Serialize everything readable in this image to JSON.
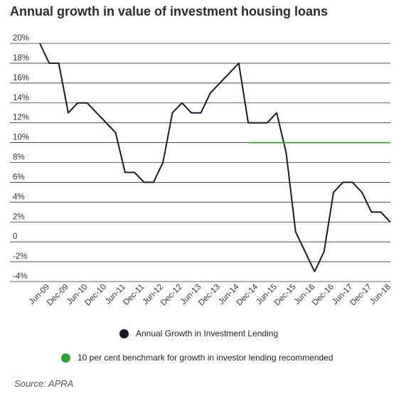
{
  "chart_data": {
    "type": "line",
    "title": "Annual growth in value of investment housing loans",
    "source": "Source: APRA",
    "ylim": [
      -4,
      20
    ],
    "y_ticks": [
      20,
      18,
      16,
      14,
      12,
      10,
      8,
      6,
      4,
      2,
      0,
      -2,
      -4
    ],
    "y_tick_labels": [
      "20%",
      "18%",
      "16%",
      "14%",
      "12%",
      "10%",
      "8%",
      "6%",
      "4%",
      "2%",
      "0",
      "-2%",
      "-4%"
    ],
    "x_tick_labels": [
      "Jun-09",
      "Dec-09",
      "Jun-10",
      "Dec-10",
      "Jun-11",
      "Dec-11",
      "Jun-12",
      "Dec-12",
      "Jun-13",
      "Dec-13",
      "Jun-14",
      "Dec-14",
      "Jun-15",
      "Dec-15",
      "Jun-16",
      "Dec-16",
      "Jun-17",
      "Dec-17",
      "Jun-18"
    ],
    "grid": true,
    "legend_position": "bottom",
    "series": [
      {
        "name": "Annual Growth in Investment Lending",
        "color": "#151b2b",
        "points": [
          [
            "Jun-09",
            20
          ],
          [
            "Sep-09",
            18
          ],
          [
            "Dec-09",
            18
          ],
          [
            "Mar-10",
            13
          ],
          [
            "Jun-10",
            14
          ],
          [
            "Sep-10",
            14
          ],
          [
            "Dec-10",
            13
          ],
          [
            "Mar-11",
            12
          ],
          [
            "Jun-11",
            11
          ],
          [
            "Sep-11",
            7
          ],
          [
            "Dec-11",
            7
          ],
          [
            "Mar-12",
            6
          ],
          [
            "Jun-12",
            6
          ],
          [
            "Sep-12",
            8
          ],
          [
            "Dec-12",
            13
          ],
          [
            "Mar-13",
            14
          ],
          [
            "Jun-13",
            13
          ],
          [
            "Sep-13",
            13
          ],
          [
            "Dec-13",
            15
          ],
          [
            "Mar-14",
            16
          ],
          [
            "Jun-14",
            17
          ],
          [
            "Sep-14",
            18
          ],
          [
            "Dec-14",
            12
          ],
          [
            "Mar-15",
            12
          ],
          [
            "Jun-15",
            12
          ],
          [
            "Sep-15",
            13
          ],
          [
            "Dec-15",
            9
          ],
          [
            "Mar-16",
            1
          ],
          [
            "Jun-16",
            -1
          ],
          [
            "Sep-16",
            -3
          ],
          [
            "Dec-16",
            -1
          ],
          [
            "Mar-17",
            5
          ],
          [
            "Jun-17",
            6
          ],
          [
            "Sep-17",
            6
          ],
          [
            "Dec-17",
            5
          ],
          [
            "Mar-18",
            3
          ],
          [
            "Jun-18",
            3
          ],
          [
            "Sep-18",
            2
          ]
        ]
      },
      {
        "name": "10 per cent benchmark for growth in investor lending recommended",
        "color": "#2fa12f",
        "points": [
          [
            "Dec-14",
            10
          ],
          [
            "Sep-18",
            10
          ]
        ]
      }
    ]
  }
}
